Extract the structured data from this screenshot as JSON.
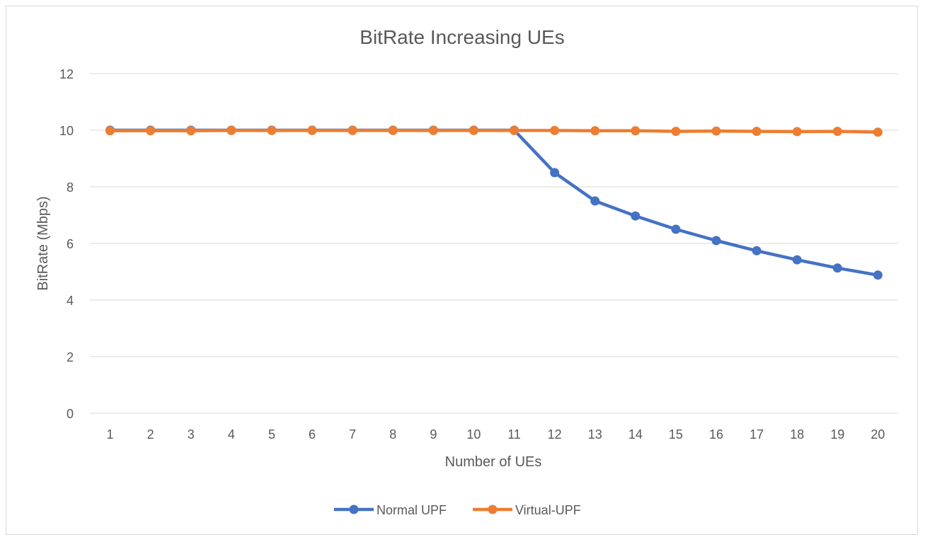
{
  "chart_data": {
    "type": "line",
    "title": "BitRate Increasing UEs",
    "xlabel": "Number of UEs",
    "ylabel": "BitRate (Mbps)",
    "categories": [
      "1",
      "2",
      "3",
      "4",
      "5",
      "6",
      "7",
      "8",
      "9",
      "10",
      "11",
      "12",
      "13",
      "14",
      "15",
      "16",
      "17",
      "18",
      "19",
      "20"
    ],
    "ylim": [
      0,
      12
    ],
    "yticks": [
      0,
      2,
      4,
      6,
      8,
      10,
      12
    ],
    "grid": true,
    "legend_position": "bottom",
    "series": [
      {
        "name": "Normal UPF",
        "color": "#4472c4",
        "values": [
          10,
          10,
          10,
          10,
          10,
          10,
          10,
          10,
          10,
          10,
          10,
          8.5,
          7.5,
          6.97,
          6.5,
          6.1,
          5.74,
          5.42,
          5.13,
          4.88
        ]
      },
      {
        "name": "Virtual-UPF",
        "color": "#ed7d31",
        "values": [
          9.98,
          9.98,
          9.98,
          9.99,
          9.99,
          9.99,
          9.99,
          9.99,
          9.99,
          9.99,
          9.99,
          9.99,
          9.98,
          9.98,
          9.96,
          9.97,
          9.96,
          9.95,
          9.96,
          9.93
        ]
      }
    ]
  }
}
